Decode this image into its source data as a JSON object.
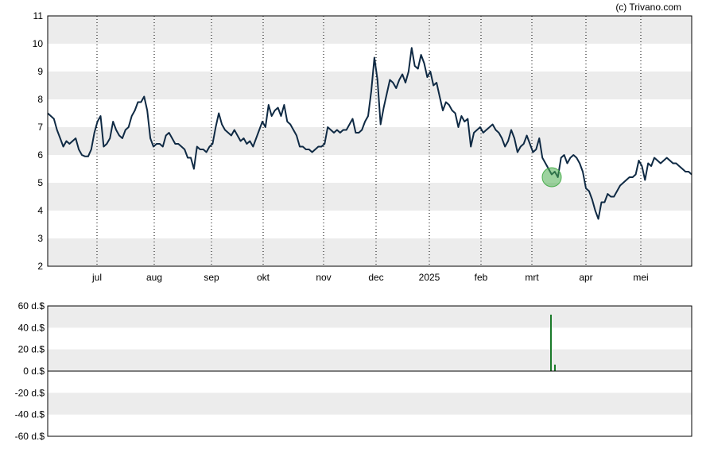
{
  "credit": "(c) Trivano.com",
  "chart_data": [
    {
      "type": "line",
      "title": "",
      "xlabel": "",
      "ylabel": "",
      "ylim": [
        2,
        11
      ],
      "yticks": [
        2,
        3,
        4,
        5,
        6,
        7,
        8,
        9,
        10,
        11
      ],
      "grid": "alternating horizontal bands, dotted vertical lines at month starts",
      "x_month_labels": [
        "jul",
        "aug",
        "sep",
        "okt",
        "nov",
        "dec",
        "2025",
        "feb",
        "mrt",
        "apr",
        "mei"
      ],
      "colors": {
        "line": "#0f2a44",
        "band": "#ececec",
        "marker": "#4caf50"
      },
      "series": [
        {
          "values": [
            7.5,
            7.4,
            7.3,
            6.9,
            6.6,
            6.3,
            6.5,
            6.4,
            6.5,
            6.6,
            6.2,
            6.0,
            5.95,
            5.95,
            6.2,
            6.8,
            7.2,
            7.4,
            6.3,
            6.4,
            6.6,
            7.2,
            6.9,
            6.7,
            6.6,
            6.9,
            7.0,
            7.4,
            7.6,
            7.9,
            7.9,
            8.1,
            7.6,
            6.6,
            6.3,
            6.4,
            6.4,
            6.3,
            6.7,
            6.8,
            6.6,
            6.4,
            6.4,
            6.3,
            6.2,
            5.9,
            5.9,
            5.5,
            6.3,
            6.2,
            6.2,
            6.1,
            6.3,
            6.4,
            7.0,
            7.5,
            7.1,
            6.9,
            6.8,
            6.7,
            6.9,
            6.7,
            6.5,
            6.6,
            6.4,
            6.5,
            6.3,
            6.6,
            6.9,
            7.2,
            7.0,
            7.8,
            7.4,
            7.6,
            7.7,
            7.4,
            7.8,
            7.2,
            7.1,
            6.9,
            6.7,
            6.3,
            6.3,
            6.2,
            6.2,
            6.1,
            6.2,
            6.3,
            6.3,
            6.4,
            7.0,
            6.9,
            6.8,
            6.9,
            6.8,
            6.9,
            6.9,
            7.1,
            7.3,
            6.8,
            6.8,
            6.9,
            7.2,
            7.4,
            8.3,
            9.5,
            8.7,
            7.1,
            7.7,
            8.2,
            8.7,
            8.6,
            8.4,
            8.7,
            8.9,
            8.6,
            9.0,
            9.85,
            9.2,
            9.1,
            9.6,
            9.3,
            8.8,
            9.0,
            8.5,
            8.6,
            8.1,
            7.6,
            7.9,
            7.8,
            7.6,
            7.5,
            7.0,
            7.4,
            7.2,
            7.3,
            6.3,
            6.8,
            6.9,
            7.0,
            6.8,
            6.9,
            7.0,
            7.1,
            6.9,
            6.8,
            6.6,
            6.3,
            6.5,
            6.9,
            6.6,
            6.1,
            6.3,
            6.4,
            6.7,
            6.4,
            6.1,
            6.2,
            6.6,
            5.9,
            5.7,
            5.5,
            5.3,
            5.4,
            5.2,
            5.9,
            6.0,
            5.7,
            5.9,
            6.0,
            5.9,
            5.7,
            5.4,
            4.8,
            4.7,
            4.4,
            4.0,
            3.7,
            4.3,
            4.3,
            4.6,
            4.5,
            4.5,
            4.7,
            4.9,
            5.0,
            5.1,
            5.2,
            5.2,
            5.3,
            5.8,
            5.6,
            5.1,
            5.7,
            5.6,
            5.9,
            5.8,
            5.7,
            5.8,
            5.9,
            5.8,
            5.7,
            5.7,
            5.6,
            5.5,
            5.4,
            5.4,
            5.3
          ]
        }
      ],
      "highlight_marker": {
        "value": 5.2,
        "month_position": "mrt"
      }
    },
    {
      "type": "bar",
      "title": "",
      "ylim": [
        -60,
        60
      ],
      "yticks": [
        "60 d.$",
        "40 d.$",
        "20 d.$",
        "0 d.$",
        "-20 d.$",
        "-40 d.$",
        "-60 d.$"
      ],
      "yvalues": [
        60,
        40,
        20,
        0,
        -20,
        -40,
        -60
      ],
      "grid": "alternating horizontal bands",
      "colors": {
        "bar": "#1b7a2a",
        "band": "#ececec"
      },
      "bars": [
        {
          "month_position": "mrt",
          "value": 52
        },
        {
          "month_position": "mrt",
          "value": 6
        }
      ]
    }
  ]
}
